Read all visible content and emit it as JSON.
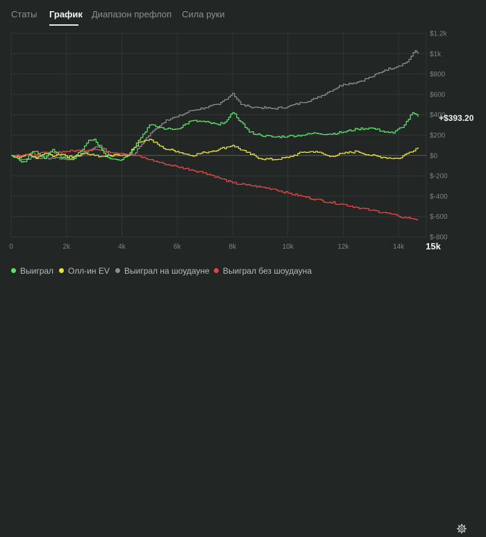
{
  "tabs": [
    {
      "label": "Статы",
      "active": false
    },
    {
      "label": "График",
      "active": true
    },
    {
      "label": "Диапазон префлоп",
      "active": false
    },
    {
      "label": "Сила руки",
      "active": false
    }
  ],
  "result_label": "+$393.20",
  "legend": [
    {
      "label": "Выиграл",
      "color": "#5ee06a"
    },
    {
      "label": "Олл-ин EV",
      "color": "#e6e23c"
    },
    {
      "label": "Выиграл на шоудауне",
      "color": "#8c8c8c"
    },
    {
      "label": "Выиграл без шоудауна",
      "color": "#e04848"
    }
  ],
  "settings_icon": "gear-icon",
  "chart_data": {
    "type": "line",
    "x_ticks": [
      "0",
      "2k",
      "4k",
      "6k",
      "8k",
      "10k",
      "12k",
      "14k",
      "15k"
    ],
    "y_ticks": [
      "$1.2k",
      "$1k",
      "$800",
      "$600",
      "$400",
      "$200",
      "$0",
      "$-200",
      "$-400",
      "$-600",
      "$-800"
    ],
    "xlim": [
      0,
      15000
    ],
    "ylim": [
      -800,
      1200
    ],
    "grid": true,
    "final_x": "15k",
    "series": [
      {
        "name": "Выиграл",
        "color": "#5ee06a",
        "x": [
          0,
          300,
          500,
          700,
          900,
          1200,
          1500,
          1800,
          2200,
          2500,
          2800,
          3000,
          3200,
          3500,
          3800,
          4000,
          4300,
          4600,
          5000,
          5300,
          5600,
          6000,
          6500,
          7000,
          7500,
          7800,
          8000,
          8300,
          8600,
          9000,
          9500,
          10000,
          10500,
          11000,
          11500,
          12000,
          12500,
          13000,
          13400,
          13800,
          14200,
          14500,
          14700
        ],
        "y": [
          0,
          -50,
          -60,
          20,
          40,
          -30,
          60,
          -20,
          -40,
          40,
          150,
          160,
          80,
          -20,
          -40,
          -40,
          30,
          150,
          300,
          280,
          260,
          260,
          340,
          330,
          300,
          350,
          420,
          330,
          230,
          200,
          180,
          190,
          200,
          220,
          210,
          230,
          260,
          270,
          240,
          220,
          300,
          420,
          380
        ]
      },
      {
        "name": "Олл-ин EV",
        "color": "#e6e23c",
        "x": [
          0,
          300,
          600,
          900,
          1200,
          1500,
          1800,
          2200,
          2600,
          3000,
          3400,
          3800,
          4200,
          4600,
          5000,
          5500,
          6000,
          6500,
          7000,
          7500,
          8000,
          8500,
          9000,
          9500,
          10000,
          10500,
          11000,
          11500,
          12000,
          12500,
          13000,
          13500,
          14000,
          14300,
          14700
        ],
        "y": [
          0,
          -20,
          10,
          -30,
          20,
          -10,
          10,
          -20,
          20,
          0,
          -10,
          10,
          0,
          130,
          160,
          70,
          40,
          0,
          30,
          60,
          100,
          30,
          -30,
          -40,
          -20,
          30,
          40,
          -10,
          20,
          40,
          0,
          -20,
          -30,
          20,
          80
        ]
      },
      {
        "name": "Выиграл на шоудауне",
        "color": "#8c8c8c",
        "x": [
          0,
          400,
          800,
          1200,
          1600,
          2000,
          2400,
          2800,
          3200,
          3600,
          4000,
          4400,
          4800,
          5200,
          5600,
          6000,
          6500,
          7000,
          7500,
          8000,
          8300,
          8600,
          9000,
          9500,
          10000,
          10500,
          11000,
          11500,
          12000,
          12500,
          13000,
          13500,
          14000,
          14300,
          14600,
          14700
        ],
        "y": [
          0,
          -40,
          -20,
          -30,
          -20,
          -40,
          -10,
          50,
          100,
          -10,
          20,
          0,
          150,
          260,
          350,
          380,
          440,
          470,
          500,
          610,
          500,
          480,
          470,
          460,
          480,
          520,
          560,
          630,
          700,
          720,
          770,
          840,
          880,
          920,
          1030,
          1000
        ]
      },
      {
        "name": "Выиграл без шоудауна",
        "color": "#e04848",
        "x": [
          0,
          500,
          1000,
          1500,
          2000,
          2500,
          3000,
          3500,
          4000,
          4500,
          5000,
          5500,
          6000,
          6500,
          7000,
          7500,
          8000,
          8500,
          9000,
          9500,
          10000,
          10500,
          11000,
          11500,
          12000,
          12500,
          13000,
          13500,
          14000,
          14500,
          14700
        ],
        "y": [
          0,
          10,
          20,
          30,
          40,
          50,
          60,
          40,
          20,
          0,
          -40,
          -80,
          -110,
          -140,
          -170,
          -220,
          -270,
          -290,
          -310,
          -330,
          -370,
          -400,
          -430,
          -460,
          -480,
          -510,
          -540,
          -560,
          -600,
          -620,
          -630
        ]
      }
    ]
  }
}
